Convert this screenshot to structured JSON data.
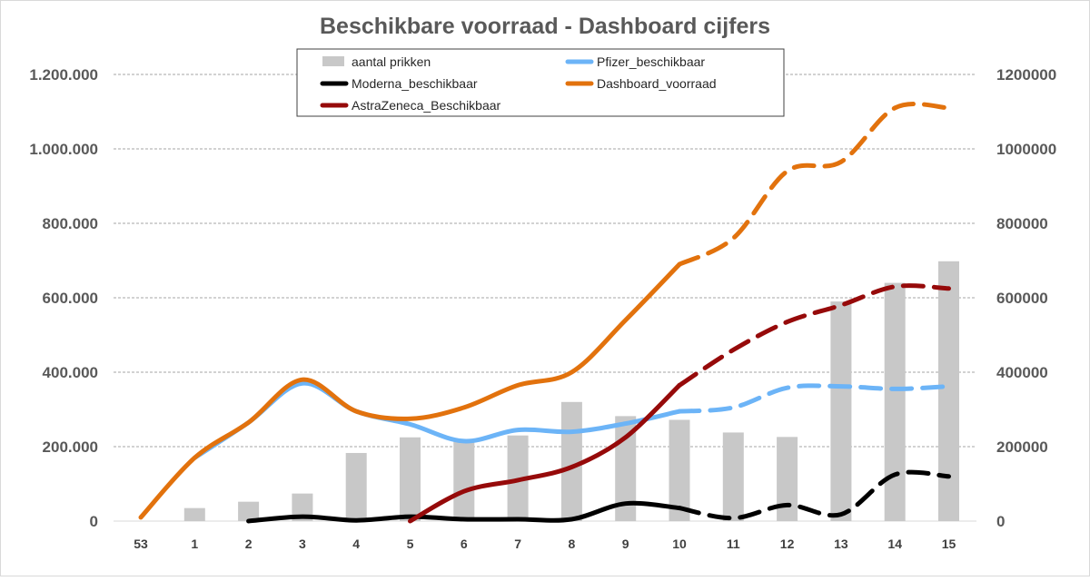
{
  "chart_data": {
    "type": "bar",
    "title": "Beschikbare voorraad - Dashboard cijfers",
    "categories": [
      "53",
      "1",
      "2",
      "3",
      "4",
      "5",
      "6",
      "7",
      "8",
      "9",
      "10",
      "11",
      "12",
      "13",
      "14",
      "15"
    ],
    "left_axis": {
      "ylim": [
        0,
        1200000
      ],
      "ticks": [
        0,
        200000,
        400000,
        600000,
        800000,
        1000000,
        1200000
      ],
      "tick_labels": [
        "0",
        "200.000",
        "400.000",
        "600.000",
        "800.000",
        "1.000.000",
        "1.200.000"
      ]
    },
    "right_axis": {
      "ylim": [
        0,
        1200000
      ],
      "ticks": [
        0,
        200000,
        400000,
        600000,
        800000,
        1000000,
        1200000
      ],
      "tick_labels": [
        "0",
        "200000",
        "400000",
        "600000",
        "800000",
        "1000000",
        "1200000"
      ]
    },
    "grid": true,
    "legend_position": "top-center",
    "solid_until_category": "10",
    "series": [
      {
        "name": "aantal prikken",
        "kind": "bar",
        "axis": "left",
        "color": "#c8c8c8",
        "values": [
          0,
          35000,
          52000,
          74000,
          183000,
          225000,
          218000,
          230000,
          320000,
          282000,
          272000,
          238000,
          226000,
          590000,
          640000,
          698000
        ]
      },
      {
        "name": "Pfizer_beschikbaar",
        "kind": "line",
        "axis": "right",
        "color": "#6cb4f7",
        "values": [
          null,
          170000,
          265000,
          370000,
          295000,
          260000,
          215000,
          245000,
          240000,
          262000,
          295000,
          305000,
          358000,
          362000,
          355000,
          362000
        ]
      },
      {
        "name": "Moderna_beschikbaar",
        "kind": "line",
        "axis": "right",
        "color": "#000000",
        "values": [
          null,
          null,
          0,
          12000,
          2000,
          12000,
          5000,
          5000,
          5000,
          47000,
          35000,
          8000,
          43000,
          18000,
          125000,
          120000
        ]
      },
      {
        "name": "Dashboard_voorraad",
        "kind": "line",
        "axis": "right",
        "color": "#e2720d",
        "values": [
          10000,
          170000,
          265000,
          380000,
          295000,
          275000,
          305000,
          365000,
          400000,
          540000,
          690000,
          760000,
          940000,
          965000,
          1110000,
          1110000
        ]
      },
      {
        "name": "AstraZeneca_Beschikbaar",
        "kind": "line",
        "axis": "right",
        "color": "#960a0a",
        "values": [
          null,
          null,
          null,
          null,
          null,
          0,
          80000,
          110000,
          145000,
          225000,
          365000,
          460000,
          535000,
          580000,
          630000,
          625000
        ]
      }
    ]
  }
}
